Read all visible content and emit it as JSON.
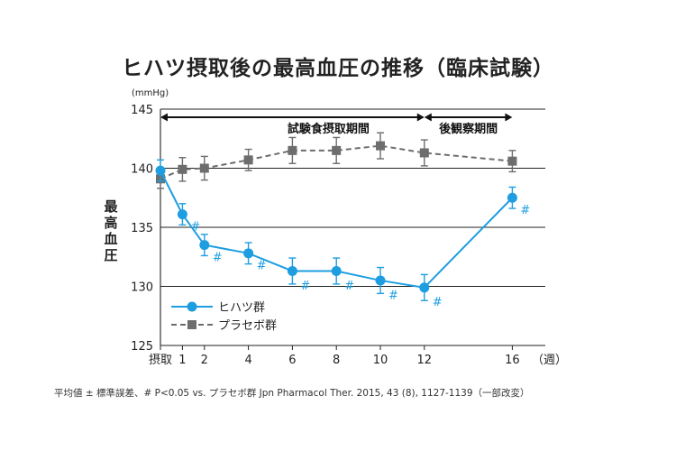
{
  "chart_data": {
    "type": "line",
    "title": "ヒハツ摂取後の最高血圧の推移（臨床試験）",
    "ylabel": "最高血圧",
    "y_unit": "(mmHg)",
    "ylim": [
      125,
      145
    ],
    "yticks": [
      125,
      130,
      135,
      140,
      145
    ],
    "xlim": [
      0,
      17.5
    ],
    "xticks": [
      {
        "x": 0,
        "label": "摂取"
      },
      {
        "x": 1,
        "label": "1"
      },
      {
        "x": 2,
        "label": "2"
      },
      {
        "x": 4,
        "label": "4"
      },
      {
        "x": 6,
        "label": "6"
      },
      {
        "x": 8,
        "label": "8"
      },
      {
        "x": 10,
        "label": "10"
      },
      {
        "x": 12,
        "label": "12"
      },
      {
        "x": 16,
        "label": "16"
      }
    ],
    "x_unit": "（週）",
    "grid": true,
    "legend_position": "bottom-left",
    "periods": [
      {
        "label": "試験食摂取期間",
        "from": 0,
        "to": 12
      },
      {
        "label": "後観察期間",
        "from": 12,
        "to": 16
      }
    ],
    "series": [
      {
        "name": "ヒハツ群",
        "color": "#1e9ee0",
        "marker": "circle",
        "line_style": "solid",
        "x": [
          0,
          1,
          2,
          4,
          6,
          8,
          10,
          12,
          16
        ],
        "y": [
          139.8,
          136.1,
          133.5,
          132.8,
          131.3,
          131.3,
          130.5,
          129.9,
          137.5
        ],
        "err": [
          0.9,
          0.9,
          0.9,
          0.9,
          1.1,
          1.1,
          1.1,
          1.1,
          0.9
        ],
        "significance": [
          "",
          "#",
          "#",
          "#",
          "#",
          "#",
          "#",
          "#",
          "#"
        ]
      },
      {
        "name": "プラセボ群",
        "color": "#6d6d6d",
        "marker": "square",
        "line_style": "dashed",
        "x": [
          0,
          1,
          2,
          4,
          6,
          8,
          10,
          12,
          16
        ],
        "y": [
          139.1,
          139.9,
          140.0,
          140.7,
          141.5,
          141.5,
          141.9,
          141.3,
          140.6
        ],
        "err": [
          0.8,
          1.0,
          1.0,
          0.9,
          1.1,
          1.1,
          1.1,
          1.1,
          0.9
        ]
      }
    ]
  },
  "footnote": "平均値 ± 標準誤差、# P<0.05 vs. プラセボ群 Jpn Pharmacol Ther. 2015, 43 (8), 1127-1139（一部改変）"
}
